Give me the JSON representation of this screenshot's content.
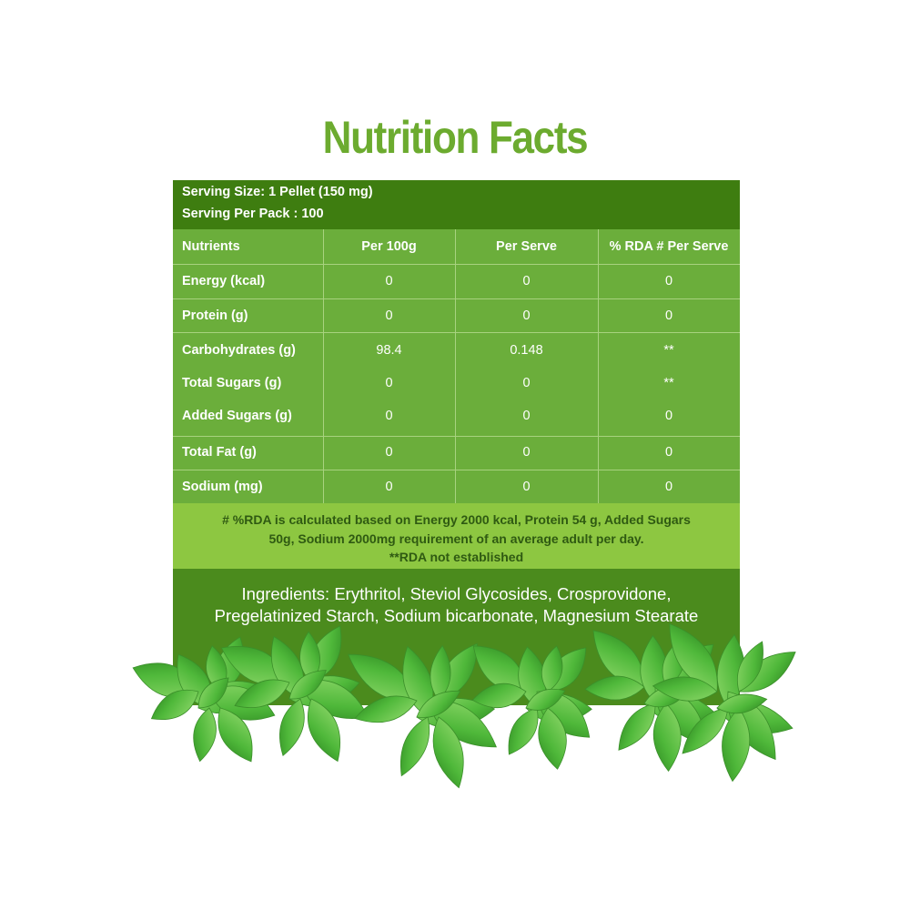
{
  "title": "Nutrition Facts",
  "serving": [
    "Serving Size: 1 Pellet (150 mg)",
    "Serving Per Pack : 100"
  ],
  "table": {
    "header": [
      "Nutrients",
      "Per 100g",
      "Per Serve",
      "% RDA # Per Serve"
    ],
    "groups": [
      [
        [
          "Energy (kcal)",
          "0",
          "0",
          "0"
        ]
      ],
      [
        [
          "Protein (g)",
          "0",
          "0",
          "0"
        ]
      ],
      [
        [
          "Carbohydrates (g)",
          "98.4",
          "0.148",
          "**"
        ],
        [
          "Total Sugars (g)",
          "0",
          "0",
          "**"
        ],
        [
          "Added Sugars (g)",
          "0",
          "0",
          "0"
        ]
      ],
      [
        [
          "Total Fat (g)",
          "0",
          "0",
          "0"
        ]
      ],
      [
        [
          "Sodium (mg)",
          "0",
          "0",
          "0"
        ]
      ]
    ]
  },
  "footnote": [
    "# %RDA is calculated based on Energy 2000 kcal, Protein 54 g, Added Sugars",
    "50g, Sodium 2000mg requirement of an average adult per day.",
    "**RDA not established"
  ],
  "ingredients": [
    "Ingredients: Erythritol, Steviol Glycosides, Crosprovidone,",
    "Pregelatinized Starch, Sodium bicarbonate, Magnesium Stearate"
  ]
}
